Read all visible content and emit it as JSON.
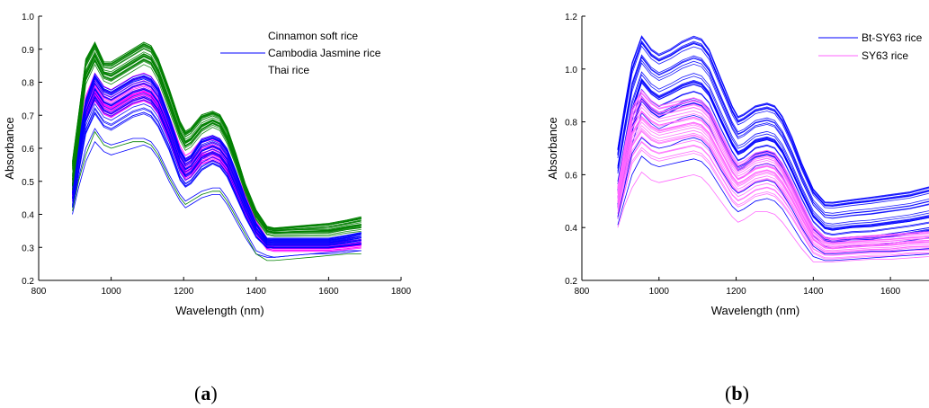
{
  "captions": {
    "a_prefix": "(",
    "a_letter": "a",
    "a_suffix": ")",
    "b_prefix": "(",
    "b_letter": "b",
    "b_suffix": ")"
  },
  "chart_data": [
    {
      "type": "line",
      "id": "a",
      "title": "",
      "xlabel": "Wavelength (nm)",
      "ylabel": "Absorbance",
      "xlim": [
        800,
        1800
      ],
      "ylim": [
        0.2,
        1.0
      ],
      "xticks": [
        800,
        1000,
        1200,
        1400,
        1600,
        1800
      ],
      "yticks": [
        0.2,
        0.3,
        0.4,
        0.5,
        0.6,
        0.7,
        0.8,
        0.9,
        1.0
      ],
      "grid": false,
      "legend_position": "top-right",
      "x": [
        893,
        910,
        930,
        955,
        980,
        1000,
        1030,
        1060,
        1090,
        1110,
        1130,
        1160,
        1190,
        1205,
        1220,
        1250,
        1280,
        1300,
        1320,
        1345,
        1370,
        1400,
        1430,
        1450,
        1500,
        1550,
        1600,
        1650,
        1690
      ],
      "series": [
        {
          "name": "Cinnamon soft rice",
          "color": "#ff00ff",
          "bands": [
            {
              "lo": [
                0.44,
                0.55,
                0.68,
                0.74,
                0.7,
                0.69,
                0.71,
                0.73,
                0.74,
                0.73,
                0.7,
                0.62,
                0.53,
                0.5,
                0.51,
                0.55,
                0.56,
                0.55,
                0.52,
                0.46,
                0.4,
                0.34,
                0.295,
                0.29,
                0.29,
                0.29,
                0.29,
                0.295,
                0.3
              ],
              "hi": [
                0.5,
                0.62,
                0.76,
                0.83,
                0.79,
                0.78,
                0.8,
                0.82,
                0.83,
                0.82,
                0.79,
                0.7,
                0.61,
                0.58,
                0.59,
                0.63,
                0.64,
                0.63,
                0.6,
                0.53,
                0.46,
                0.38,
                0.325,
                0.32,
                0.32,
                0.32,
                0.32,
                0.325,
                0.33
              ]
            }
          ]
        },
        {
          "name": "Cambodia Jasmine rice",
          "color": "#0000ff",
          "bands": [
            {
              "lo": [
                0.42,
                0.52,
                0.64,
                0.7,
                0.66,
                0.65,
                0.67,
                0.69,
                0.7,
                0.69,
                0.66,
                0.59,
                0.5,
                0.48,
                0.49,
                0.53,
                0.55,
                0.54,
                0.51,
                0.45,
                0.39,
                0.33,
                0.3,
                0.3,
                0.3,
                0.3,
                0.3,
                0.305,
                0.31
              ],
              "hi": [
                0.5,
                0.63,
                0.76,
                0.84,
                0.8,
                0.79,
                0.81,
                0.83,
                0.84,
                0.83,
                0.8,
                0.71,
                0.61,
                0.58,
                0.59,
                0.64,
                0.65,
                0.64,
                0.61,
                0.54,
                0.46,
                0.38,
                0.33,
                0.33,
                0.33,
                0.33,
                0.33,
                0.34,
                0.35
              ]
            }
          ]
        },
        {
          "name": "Thai rice",
          "color": "#008000",
          "bands": [
            {
              "lo": [
                0.48,
                0.62,
                0.8,
                0.86,
                0.81,
                0.8,
                0.82,
                0.84,
                0.86,
                0.85,
                0.81,
                0.72,
                0.63,
                0.6,
                0.61,
                0.65,
                0.67,
                0.66,
                0.62,
                0.55,
                0.47,
                0.39,
                0.345,
                0.34,
                0.34,
                0.34,
                0.34,
                0.35,
                0.355
              ],
              "hi": [
                0.56,
                0.7,
                0.87,
                0.92,
                0.86,
                0.86,
                0.88,
                0.9,
                0.92,
                0.91,
                0.87,
                0.78,
                0.68,
                0.65,
                0.66,
                0.7,
                0.71,
                0.7,
                0.66,
                0.58,
                0.49,
                0.41,
                0.36,
                0.355,
                0.36,
                0.365,
                0.37,
                0.38,
                0.39
              ]
            }
          ]
        }
      ],
      "outliers": [
        {
          "color": "#0000ff",
          "values": [
            0.4,
            0.48,
            0.56,
            0.62,
            0.59,
            0.58,
            0.59,
            0.6,
            0.61,
            0.6,
            0.57,
            0.5,
            0.44,
            0.42,
            0.43,
            0.45,
            0.46,
            0.46,
            0.43,
            0.38,
            0.33,
            0.28,
            0.27,
            0.27,
            0.275,
            0.28,
            0.285,
            0.29,
            0.29
          ]
        },
        {
          "color": "#008000",
          "values": [
            0.41,
            0.5,
            0.58,
            0.65,
            0.61,
            0.6,
            0.61,
            0.62,
            0.62,
            0.61,
            0.58,
            0.51,
            0.45,
            0.43,
            0.44,
            0.46,
            0.47,
            0.47,
            0.44,
            0.39,
            0.34,
            0.28,
            0.26,
            0.26,
            0.265,
            0.27,
            0.275,
            0.28,
            0.28
          ]
        },
        {
          "color": "#0000ff",
          "values": [
            0.42,
            0.51,
            0.6,
            0.66,
            0.62,
            0.61,
            0.62,
            0.63,
            0.63,
            0.62,
            0.59,
            0.52,
            0.46,
            0.44,
            0.45,
            0.47,
            0.48,
            0.48,
            0.45,
            0.4,
            0.35,
            0.29,
            0.275,
            0.27,
            0.275,
            0.28,
            0.28,
            0.285,
            0.29
          ]
        }
      ]
    },
    {
      "type": "line",
      "id": "b",
      "title": "",
      "xlabel": "Wavelength (nm)",
      "ylabel": "Absorbance",
      "xlim": [
        800,
        1700
      ],
      "ylim": [
        0.2,
        1.2
      ],
      "xticks": [
        800,
        1000,
        1200,
        1400,
        1600
      ],
      "yticks": [
        0.2,
        0.4,
        0.6,
        0.8,
        1.0,
        1.2
      ],
      "grid": false,
      "legend_position": "top-right",
      "x": [
        893,
        910,
        930,
        955,
        980,
        1000,
        1030,
        1060,
        1090,
        1110,
        1130,
        1160,
        1190,
        1205,
        1220,
        1250,
        1280,
        1300,
        1320,
        1345,
        1370,
        1400,
        1430,
        1450,
        1500,
        1550,
        1600,
        1650,
        1700
      ],
      "series": [
        {
          "name": "Bt-SY63 rice",
          "color": "#0000ff",
          "bands": [
            {
              "lo": [
                0.42,
                0.54,
                0.7,
                0.82,
                0.78,
                0.76,
                0.78,
                0.8,
                0.81,
                0.8,
                0.77,
                0.68,
                0.6,
                0.57,
                0.58,
                0.62,
                0.63,
                0.62,
                0.58,
                0.51,
                0.44,
                0.36,
                0.32,
                0.31,
                0.32,
                0.32,
                0.33,
                0.34,
                0.35
              ],
              "hi": [
                0.72,
                0.88,
                1.05,
                1.15,
                1.1,
                1.08,
                1.1,
                1.13,
                1.15,
                1.14,
                1.1,
                0.99,
                0.88,
                0.84,
                0.85,
                0.88,
                0.89,
                0.88,
                0.84,
                0.76,
                0.66,
                0.56,
                0.51,
                0.51,
                0.52,
                0.53,
                0.54,
                0.55,
                0.57
              ]
            }
          ]
        },
        {
          "name": "SY63 rice",
          "color": "#ff66ff",
          "bands": [
            {
              "lo": [
                0.43,
                0.52,
                0.63,
                0.68,
                0.65,
                0.64,
                0.65,
                0.66,
                0.67,
                0.66,
                0.63,
                0.56,
                0.49,
                0.47,
                0.48,
                0.51,
                0.52,
                0.51,
                0.48,
                0.43,
                0.37,
                0.3,
                0.28,
                0.28,
                0.285,
                0.29,
                0.29,
                0.3,
                0.3
              ],
              "hi": [
                0.55,
                0.7,
                0.85,
                0.92,
                0.88,
                0.86,
                0.87,
                0.88,
                0.89,
                0.88,
                0.85,
                0.76,
                0.67,
                0.64,
                0.65,
                0.68,
                0.69,
                0.68,
                0.64,
                0.57,
                0.49,
                0.4,
                0.36,
                0.355,
                0.36,
                0.365,
                0.37,
                0.375,
                0.38
              ]
            }
          ]
        }
      ],
      "outliers": [
        {
          "color": "#ff66ff",
          "values": [
            0.4,
            0.48,
            0.55,
            0.61,
            0.58,
            0.57,
            0.58,
            0.59,
            0.6,
            0.59,
            0.56,
            0.5,
            0.44,
            0.42,
            0.43,
            0.46,
            0.46,
            0.45,
            0.42,
            0.37,
            0.32,
            0.27,
            0.27,
            0.27,
            0.275,
            0.28,
            0.28,
            0.285,
            0.29
          ]
        },
        {
          "color": "#0000ff",
          "values": [
            0.41,
            0.5,
            0.6,
            0.67,
            0.64,
            0.63,
            0.64,
            0.65,
            0.66,
            0.65,
            0.62,
            0.55,
            0.48,
            0.46,
            0.47,
            0.5,
            0.51,
            0.5,
            0.47,
            0.41,
            0.35,
            0.29,
            0.275,
            0.275,
            0.28,
            0.285,
            0.29,
            0.295,
            0.3
          ]
        },
        {
          "color": "#0000ff",
          "values": [
            0.44,
            0.55,
            0.68,
            0.74,
            0.71,
            0.7,
            0.71,
            0.73,
            0.74,
            0.73,
            0.7,
            0.62,
            0.55,
            0.53,
            0.54,
            0.57,
            0.58,
            0.57,
            0.53,
            0.47,
            0.4,
            0.33,
            0.3,
            0.3,
            0.305,
            0.31,
            0.31,
            0.315,
            0.32
          ]
        }
      ]
    }
  ]
}
